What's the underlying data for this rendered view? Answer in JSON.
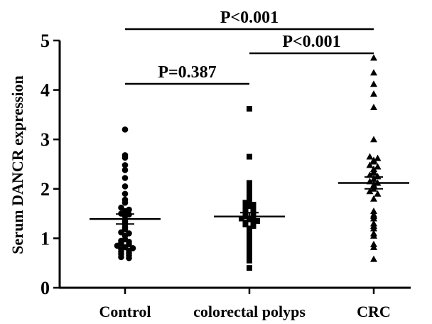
{
  "chart_data": {
    "type": "scatter",
    "title": "",
    "xlabel": "",
    "ylabel": "Serum DANCR expression",
    "categories": [
      "Control",
      "colorectal polyps",
      "CRC"
    ],
    "ylim": [
      0,
      5
    ],
    "yticks": [
      "0",
      "1",
      "2",
      "3",
      "4",
      "5"
    ],
    "grid": false,
    "series": [
      {
        "category": "Control",
        "marker": "circle",
        "mean": 1.39,
        "sem": 0.1,
        "values": [
          3.2,
          2.68,
          2.63,
          2.48,
          2.38,
          2.22,
          2.05,
          1.9,
          1.78,
          1.72,
          1.62,
          1.58,
          1.55,
          1.5,
          1.48,
          1.45,
          1.38,
          1.33,
          1.28,
          1.22,
          1.18,
          1.12,
          1.1,
          1.05,
          0.98,
          0.95,
          0.93,
          0.9,
          0.88,
          0.85,
          0.82,
          0.8,
          0.78,
          0.75,
          0.73,
          0.7,
          0.68,
          0.65,
          0.62,
          0.6
        ]
      },
      {
        "category": "colorectal polyps",
        "marker": "square",
        "mean": 1.44,
        "sem": 0.08,
        "values": [
          3.62,
          2.65,
          2.12,
          2.05,
          1.98,
          1.88,
          1.8,
          1.76,
          1.72,
          1.68,
          1.65,
          1.62,
          1.58,
          1.55,
          1.52,
          1.5,
          1.48,
          1.45,
          1.42,
          1.4,
          1.38,
          1.35,
          1.32,
          1.3,
          1.28,
          1.25,
          1.2,
          1.15,
          1.1,
          1.05,
          1.0,
          0.95,
          0.88,
          0.82,
          0.75,
          0.68,
          0.62,
          0.55,
          0.4
        ]
      },
      {
        "category": "CRC",
        "marker": "triangle",
        "mean": 2.12,
        "sem": 0.12,
        "values": [
          4.65,
          4.35,
          4.12,
          3.92,
          3.65,
          3.0,
          2.65,
          2.62,
          2.58,
          2.55,
          2.48,
          2.45,
          2.4,
          2.35,
          2.32,
          2.28,
          2.25,
          2.2,
          2.15,
          2.12,
          2.08,
          2.05,
          2.0,
          1.95,
          1.9,
          1.8,
          1.55,
          1.48,
          1.45,
          1.4,
          1.3,
          1.25,
          1.2,
          1.1,
          1.05,
          0.88,
          0.82,
          0.58
        ]
      }
    ],
    "comparisons": [
      {
        "from": "Control",
        "to": "CRC",
        "label": "P<0.001"
      },
      {
        "from": "colorectal polyps",
        "to": "CRC",
        "label": "P<0.001"
      },
      {
        "from": "Control",
        "to": "colorectal polyps",
        "label": "P=0.387"
      }
    ]
  }
}
